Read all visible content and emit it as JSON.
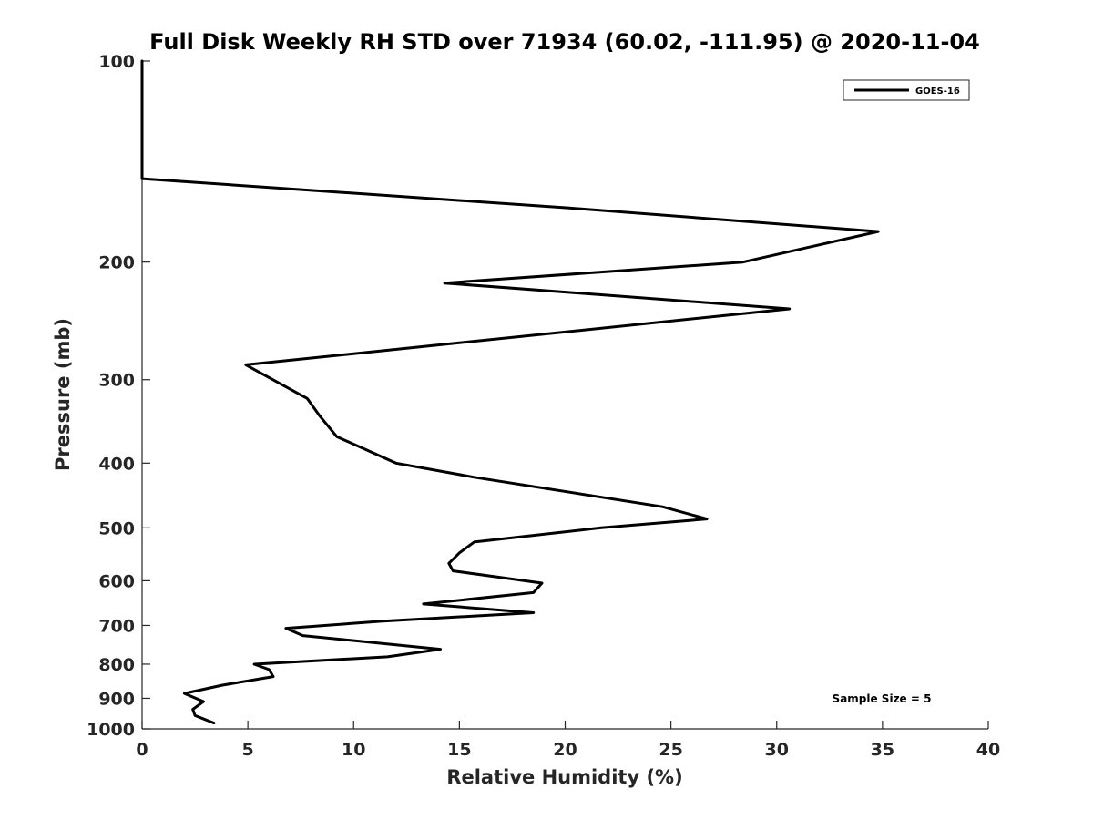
{
  "chart_data": {
    "type": "line",
    "title": "Full Disk Weekly RH STD over 71934 (60.02, -111.95) @ 2020-11-04",
    "xlabel": "Relative Humidity (%)",
    "ylabel": "Pressure (mb)",
    "xlim": [
      0,
      40
    ],
    "ylim": [
      100,
      1000
    ],
    "yscale": "log",
    "ydirection": "reverse",
    "grid": false,
    "legend_position": "top-right",
    "x_ticks": [
      0,
      5,
      10,
      15,
      20,
      25,
      30,
      35,
      40
    ],
    "y_ticks": [
      100,
      200,
      300,
      400,
      500,
      600,
      700,
      800,
      900,
      1000
    ],
    "annotation": "Sample Size = 5",
    "series": [
      {
        "name": "GOES-16",
        "color": "#000000",
        "points": [
          {
            "x": 0,
            "y": 100
          },
          {
            "x": 0,
            "y": 150
          },
          {
            "x": 20.2,
            "y": 166
          },
          {
            "x": 34.8,
            "y": 180
          },
          {
            "x": 28.4,
            "y": 200
          },
          {
            "x": 14.3,
            "y": 215
          },
          {
            "x": 30.6,
            "y": 235
          },
          {
            "x": 4.9,
            "y": 285
          },
          {
            "x": 7.8,
            "y": 320
          },
          {
            "x": 8.4,
            "y": 340
          },
          {
            "x": 9.2,
            "y": 365
          },
          {
            "x": 12.0,
            "y": 400
          },
          {
            "x": 15.7,
            "y": 420
          },
          {
            "x": 24.6,
            "y": 465
          },
          {
            "x": 26.7,
            "y": 485
          },
          {
            "x": 21.7,
            "y": 500
          },
          {
            "x": 15.7,
            "y": 525
          },
          {
            "x": 15.0,
            "y": 545
          },
          {
            "x": 14.5,
            "y": 565
          },
          {
            "x": 14.7,
            "y": 580
          },
          {
            "x": 18.9,
            "y": 605
          },
          {
            "x": 18.5,
            "y": 625
          },
          {
            "x": 13.3,
            "y": 650
          },
          {
            "x": 18.5,
            "y": 670
          },
          {
            "x": 11.3,
            "y": 690
          },
          {
            "x": 6.8,
            "y": 707
          },
          {
            "x": 7.6,
            "y": 725
          },
          {
            "x": 14.1,
            "y": 760
          },
          {
            "x": 11.6,
            "y": 780
          },
          {
            "x": 5.3,
            "y": 800
          },
          {
            "x": 6.0,
            "y": 815
          },
          {
            "x": 6.2,
            "y": 835
          },
          {
            "x": 3.8,
            "y": 860
          },
          {
            "x": 2.0,
            "y": 885
          },
          {
            "x": 2.9,
            "y": 910
          },
          {
            "x": 2.4,
            "y": 935
          },
          {
            "x": 2.5,
            "y": 955
          },
          {
            "x": 3.4,
            "y": 980
          }
        ]
      }
    ]
  }
}
